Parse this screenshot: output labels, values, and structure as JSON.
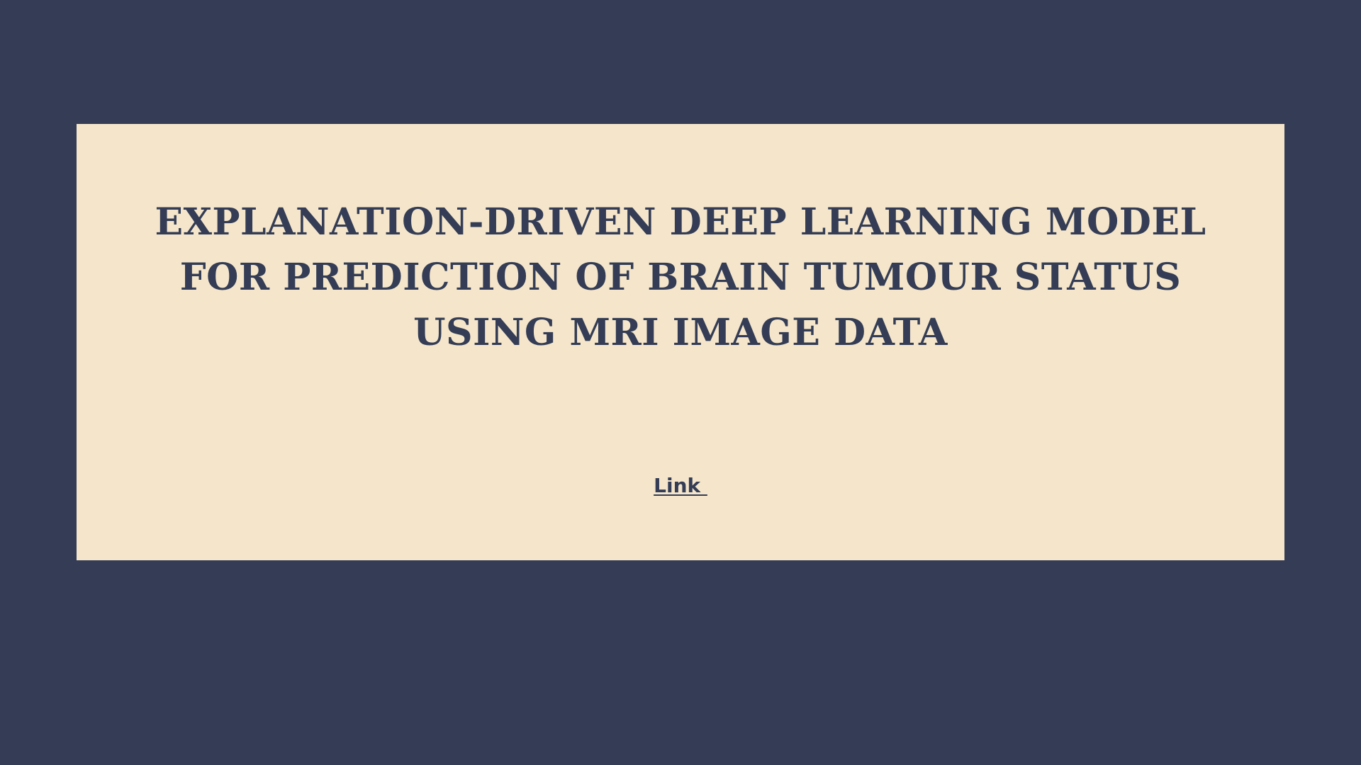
{
  "slide": {
    "title": "EXPLANATION-DRIVEN DEEP LEARNING MODEL FOR PREDICTION OF BRAIN TUMOUR STATUS USING MRI IMAGE DATA",
    "link_label": "Link "
  },
  "colors": {
    "background": "#343d55",
    "card": "#f5e6cb",
    "text": "#343d55"
  }
}
